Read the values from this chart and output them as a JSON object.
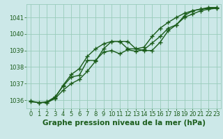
{
  "xlabel": "Graphe pression niveau de la mer (hPa)",
  "background_color": "#cce8e8",
  "grid_color": "#99ccbb",
  "line_color": "#1a5c1a",
  "xlim": [
    -0.5,
    23.5
  ],
  "ylim": [
    1035.5,
    1041.8
  ],
  "xticks": [
    0,
    1,
    2,
    3,
    4,
    5,
    6,
    7,
    8,
    9,
    10,
    11,
    12,
    13,
    14,
    15,
    16,
    17,
    18,
    19,
    20,
    21,
    22,
    23
  ],
  "yticks": [
    1036,
    1037,
    1038,
    1039,
    1040,
    1041
  ],
  "series1": {
    "x": [
      0,
      1,
      2,
      3,
      4,
      5,
      6,
      7,
      8,
      9,
      10,
      11,
      12,
      13,
      14,
      15,
      16,
      17,
      18,
      19,
      20,
      21,
      22,
      23
    ],
    "y": [
      1035.9,
      1035.85,
      1035.85,
      1036.1,
      1036.6,
      1037.0,
      1037.25,
      1037.75,
      1038.35,
      1039.1,
      1039.55,
      1039.55,
      1039.55,
      1039.1,
      1039.0,
      1039.0,
      1039.5,
      1040.2,
      1040.55,
      1041.0,
      1041.2,
      1041.4,
      1041.5,
      1041.55
    ]
  },
  "series2": {
    "x": [
      0,
      1,
      2,
      3,
      4,
      5,
      6,
      7,
      8,
      9,
      10,
      11,
      12,
      13,
      14,
      15,
      16,
      17,
      18,
      19,
      20,
      21,
      22,
      23
    ],
    "y": [
      1035.95,
      1035.85,
      1035.9,
      1036.2,
      1036.85,
      1037.4,
      1037.5,
      1038.4,
      1038.4,
      1038.9,
      1039.0,
      1038.8,
      1039.05,
      1038.95,
      1039.05,
      1039.45,
      1039.85,
      1040.35,
      1040.55,
      1041.1,
      1041.4,
      1041.5,
      1041.6,
      1041.6
    ]
  },
  "series3": {
    "x": [
      2,
      3,
      4,
      5,
      6,
      7,
      8,
      9,
      10,
      11,
      12,
      13,
      14,
      15,
      16,
      17,
      18,
      19,
      20,
      21,
      22,
      23
    ],
    "y": [
      1035.85,
      1036.15,
      1036.9,
      1037.55,
      1037.9,
      1038.65,
      1039.1,
      1039.4,
      1039.55,
      1039.55,
      1039.1,
      1039.1,
      1039.2,
      1039.85,
      1040.35,
      1040.7,
      1041.0,
      1041.25,
      1041.4,
      1041.5,
      1041.55,
      1041.6
    ]
  },
  "xlabel_fontsize": 7.5,
  "tick_fontsize": 6,
  "marker": "+",
  "marker_size": 4,
  "linewidth": 1.0
}
